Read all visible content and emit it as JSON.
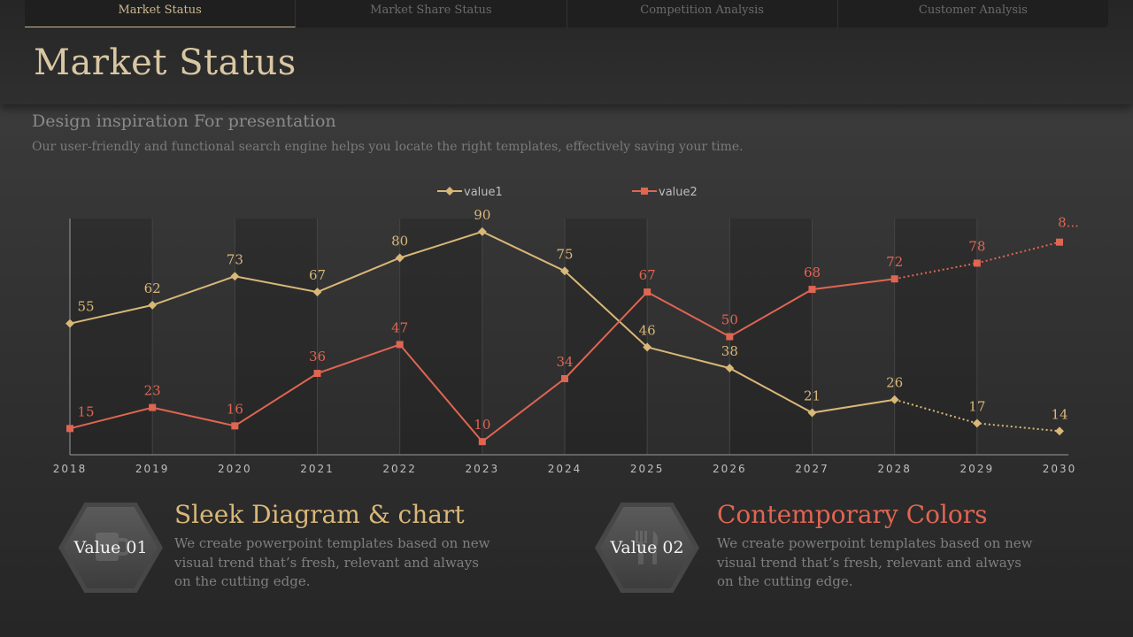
{
  "tabs": [
    {
      "label": "Market Status",
      "active": true
    },
    {
      "label": "Market Share Status",
      "active": false
    },
    {
      "label": "Competition  Analysis",
      "active": false
    },
    {
      "label": "Customer Analysis",
      "active": false
    }
  ],
  "page_title": "Market Status",
  "subtitle": "Design inspiration For presentation",
  "description": "Our user-friendly and functional search engine helps you locate the right templates, effectively saving your time.",
  "colors": {
    "value1": "#d9b778",
    "value2": "#e06552"
  },
  "chart_data": {
    "type": "line",
    "categories": [
      "2018",
      "2019",
      "2020",
      "2021",
      "2022",
      "2023",
      "2024",
      "2025",
      "2026",
      "2027",
      "2028",
      "2029",
      "2030"
    ],
    "series": [
      {
        "name": "value1",
        "values": [
          55,
          62,
          73,
          67,
          80,
          90,
          75,
          46,
          38,
          21,
          26,
          17,
          14
        ],
        "labels": [
          "55",
          "62",
          "73",
          "67",
          "80",
          "90",
          "75",
          "46",
          "38",
          "21",
          "26",
          "17",
          "14"
        ],
        "forecast_from_index": 10,
        "marker": "diamond"
      },
      {
        "name": "value2",
        "values": [
          15,
          23,
          16,
          36,
          47,
          10,
          34,
          67,
          50,
          68,
          72,
          78,
          86
        ],
        "labels": [
          "15",
          "23",
          "16",
          "36",
          "47",
          "10",
          "34",
          "67",
          "50",
          "68",
          "72",
          "78",
          "8..."
        ],
        "forecast_from_index": 10,
        "marker": "square"
      }
    ],
    "ylim": [
      5,
      95
    ],
    "legend": "top-center",
    "grid": false
  },
  "features": [
    {
      "hex_label": "Value 01",
      "icon": "mug-icon",
      "title": "Sleek Diagram & chart",
      "color": "#d9b778",
      "body": "We create powerpoint templates based on new visual trend that’s fresh, relevant and always on the cutting edge."
    },
    {
      "hex_label": "Value 02",
      "icon": "cutlery-icon",
      "title": "Contemporary Colors",
      "color": "#e06552",
      "body": "We create powerpoint templates based on new visual trend that’s fresh, relevant and always on the cutting edge."
    }
  ]
}
